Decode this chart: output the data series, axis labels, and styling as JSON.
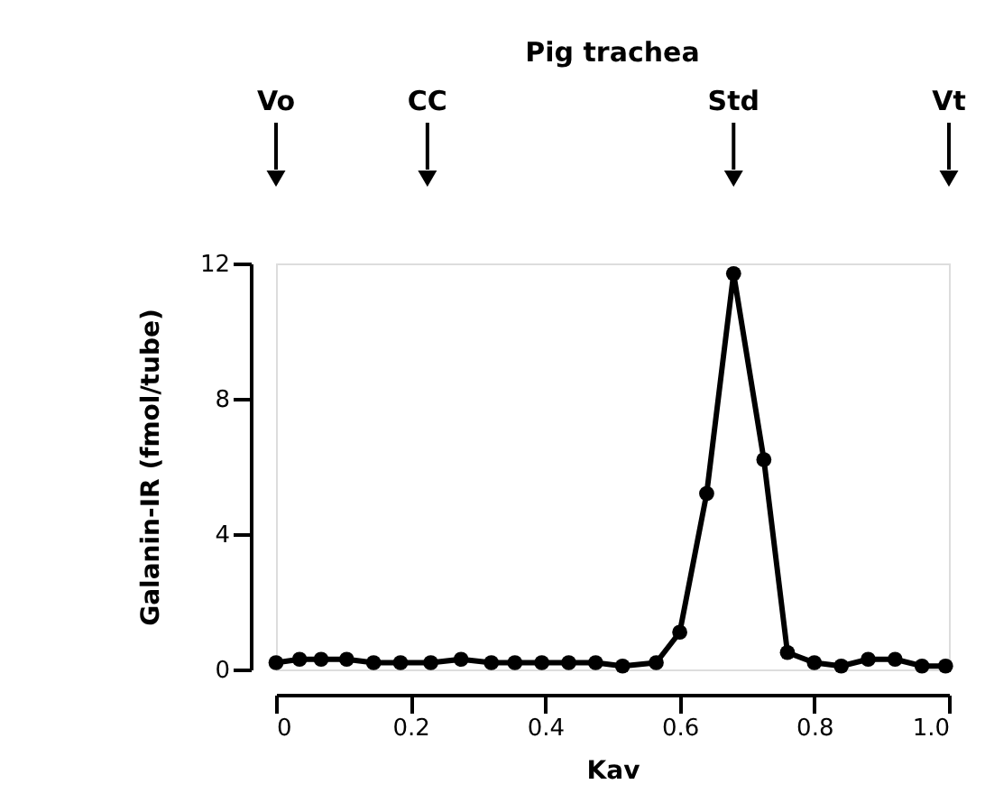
{
  "chart_data": {
    "type": "line",
    "title": "Pig trachea",
    "xlabel": "Kav",
    "ylabel": "Galanin-IR (fmol/tube)",
    "x": [
      0,
      0.035,
      0.067,
      0.105,
      0.145,
      0.185,
      0.23,
      0.275,
      0.32,
      0.355,
      0.395,
      0.435,
      0.475,
      0.515,
      0.565,
      0.6,
      0.64,
      0.68,
      0.725,
      0.76,
      0.8,
      0.84,
      0.88,
      0.92,
      0.96,
      0.995
    ],
    "series": [
      {
        "color": "#000000",
        "values": [
          0.2,
          0.3,
          0.3,
          0.3,
          0.2,
          0.2,
          0.2,
          0.3,
          0.2,
          0.2,
          0.2,
          0.2,
          0.2,
          0.1,
          0.2,
          1.1,
          5.2,
          11.7,
          6.2,
          0.5,
          0.2,
          0.1,
          0.3,
          0.3,
          0.1,
          0.1
        ]
      }
    ],
    "xlim": [
      0,
      1
    ],
    "xticks": [
      0,
      0.2,
      0.4,
      0.6,
      0.8,
      {
        "value": 1,
        "label": "1.0"
      }
    ],
    "ylim": [
      0,
      12
    ],
    "yticks": [
      0,
      4,
      8,
      12
    ],
    "ref_lines": [
      {
        "axis": "x",
        "value": 0,
        "label": "Vo"
      },
      {
        "axis": "x",
        "value": 0.225,
        "label": "CC"
      },
      {
        "axis": "x",
        "value": 0.68,
        "label": "Std"
      },
      {
        "axis": "x",
        "value": 1.0,
        "label": "Vt"
      }
    ],
    "grid": false,
    "marker": "circle",
    "line_style": "solid"
  }
}
